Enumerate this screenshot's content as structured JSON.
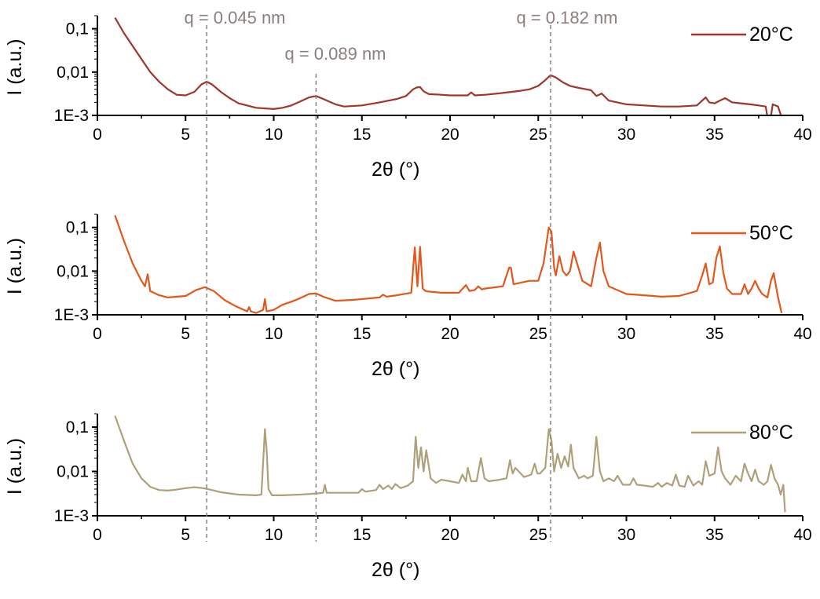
{
  "figure": {
    "annotations": [
      {
        "label": "q = 0.045 nm",
        "x": 6.2
      },
      {
        "label": "q = 0.089 nm",
        "x": 12.4
      },
      {
        "label": "q = 0.182 nm",
        "x": 25.7
      }
    ],
    "annotation_color": "#8c7f7d"
  },
  "chart_data": [
    {
      "type": "line",
      "legend_label": "20°C",
      "color": "#a0352a",
      "xlabel": "2θ (°)",
      "ylabel": "I (a.u.)",
      "xlim": [
        0,
        40
      ],
      "ylim": [
        0.001,
        0.2
      ],
      "y_scale": "log",
      "xticks": [
        0,
        5,
        10,
        15,
        20,
        25,
        30,
        35,
        40
      ],
      "yticks": [
        {
          "value": 0.001,
          "label": "1E-3"
        },
        {
          "value": 0.01,
          "label": "0,01"
        },
        {
          "value": 0.1,
          "label": "0,1"
        }
      ],
      "legend_position": "top-right",
      "series": [
        {
          "name": "20°C",
          "x": [
            1.0,
            1.5,
            2.0,
            2.5,
            3.0,
            3.5,
            4.0,
            4.5,
            5.0,
            5.5,
            5.9,
            6.2,
            6.5,
            7.0,
            7.5,
            8.0,
            9.0,
            10.0,
            10.5,
            11.0,
            11.5,
            12.0,
            12.4,
            12.8,
            13.5,
            14.0,
            15.0,
            16.0,
            17.0,
            17.5,
            17.9,
            18.1,
            18.3,
            18.5,
            18.8,
            19.5,
            20.0,
            21.0,
            21.2,
            21.4,
            22.0,
            23.0,
            24.0,
            24.5,
            25.0,
            25.4,
            25.7,
            26.0,
            26.4,
            26.8,
            27.2,
            27.6,
            28.0,
            28.3,
            28.6,
            29.0,
            30.0,
            31.0,
            32.0,
            33.0,
            34.0,
            34.3,
            34.5,
            34.7,
            35.0,
            35.3,
            35.6,
            36.0,
            36.5,
            37.0,
            37.5,
            37.9,
            38.1,
            38.3,
            38.6,
            38.8
          ],
          "y": [
            0.18,
            0.08,
            0.04,
            0.02,
            0.01,
            0.006,
            0.004,
            0.003,
            0.0029,
            0.0035,
            0.0052,
            0.006,
            0.0052,
            0.0035,
            0.0025,
            0.0019,
            0.0015,
            0.0014,
            0.0015,
            0.0017,
            0.0021,
            0.0026,
            0.0028,
            0.0024,
            0.0018,
            0.0016,
            0.0017,
            0.002,
            0.0024,
            0.0028,
            0.004,
            0.0044,
            0.0045,
            0.0036,
            0.0031,
            0.003,
            0.0029,
            0.0029,
            0.0034,
            0.0029,
            0.003,
            0.0033,
            0.0037,
            0.004,
            0.0048,
            0.0065,
            0.0085,
            0.0075,
            0.0058,
            0.0048,
            0.0044,
            0.0041,
            0.0038,
            0.0028,
            0.0032,
            0.0022,
            0.0018,
            0.0017,
            0.0016,
            0.0016,
            0.0017,
            0.0022,
            0.0026,
            0.002,
            0.0019,
            0.0022,
            0.0025,
            0.002,
            0.0019,
            0.0018,
            0.0017,
            0.0016,
            0.0005,
            0.0018,
            0.0016,
            0.0009
          ]
        }
      ]
    },
    {
      "type": "line",
      "legend_label": "50°C",
      "color": "#e2571c",
      "xlabel": "2θ (°)",
      "ylabel": "I (a.u.)",
      "xlim": [
        0,
        40
      ],
      "ylim": [
        0.001,
        0.2
      ],
      "y_scale": "log",
      "xticks": [
        0,
        5,
        10,
        15,
        20,
        25,
        30,
        35,
        40
      ],
      "yticks": [
        {
          "value": 0.001,
          "label": "1E-3"
        },
        {
          "value": 0.01,
          "label": "0,01"
        },
        {
          "value": 0.1,
          "label": "0,1"
        }
      ],
      "legend_position": "top-right",
      "series": [
        {
          "name": "50°C",
          "x": [
            1.0,
            1.5,
            2.0,
            2.5,
            2.7,
            2.85,
            3.0,
            3.5,
            4.0,
            5.0,
            5.6,
            6.1,
            6.6,
            7.2,
            7.8,
            8.5,
            8.6,
            8.7,
            9.0,
            9.4,
            9.5,
            9.6,
            10.0,
            10.5,
            11.0,
            11.5,
            12.0,
            12.4,
            12.8,
            13.5,
            14.5,
            16.0,
            16.2,
            16.4,
            17.0,
            17.8,
            18.0,
            18.15,
            18.3,
            18.45,
            18.6,
            18.8,
            19.5,
            20.5,
            20.9,
            21.1,
            21.4,
            21.6,
            21.8,
            22.0,
            23.0,
            23.35,
            23.45,
            23.6,
            24.5,
            25.0,
            25.3,
            25.6,
            25.75,
            25.9,
            26.0,
            26.2,
            26.4,
            26.6,
            26.8,
            27.0,
            27.5,
            28.0,
            28.3,
            28.5,
            28.7,
            29.0,
            30.0,
            31.0,
            32.0,
            33.0,
            34.0,
            34.3,
            34.5,
            34.7,
            34.9,
            35.1,
            35.3,
            35.5,
            35.7,
            36.0,
            36.5,
            36.7,
            36.9,
            37.1,
            37.3,
            37.5,
            37.7,
            38.0,
            38.2,
            38.35,
            38.6,
            38.8
          ],
          "y": [
            0.19,
            0.05,
            0.015,
            0.006,
            0.0045,
            0.0085,
            0.0035,
            0.0028,
            0.0025,
            0.0027,
            0.0037,
            0.0043,
            0.0035,
            0.0022,
            0.0016,
            0.0012,
            0.0015,
            0.0012,
            0.0011,
            0.0013,
            0.0023,
            0.0012,
            0.0013,
            0.0017,
            0.002,
            0.0024,
            0.003,
            0.0031,
            0.0026,
            0.0021,
            0.0022,
            0.0025,
            0.0029,
            0.0026,
            0.0028,
            0.0032,
            0.035,
            0.0045,
            0.036,
            0.004,
            0.0035,
            0.0034,
            0.0032,
            0.0032,
            0.0048,
            0.0035,
            0.0037,
            0.0045,
            0.0038,
            0.004,
            0.0045,
            0.012,
            0.012,
            0.005,
            0.006,
            0.006,
            0.015,
            0.1,
            0.08,
            0.012,
            0.008,
            0.022,
            0.01,
            0.008,
            0.01,
            0.028,
            0.006,
            0.0045,
            0.02,
            0.045,
            0.01,
            0.0045,
            0.003,
            0.0028,
            0.0026,
            0.0027,
            0.0035,
            0.008,
            0.015,
            0.005,
            0.0055,
            0.02,
            0.037,
            0.009,
            0.004,
            0.003,
            0.003,
            0.005,
            0.003,
            0.004,
            0.006,
            0.004,
            0.003,
            0.0025,
            0.006,
            0.009,
            0.0025,
            0.0011
          ]
        }
      ]
    },
    {
      "type": "line",
      "legend_label": "80°C",
      "color": "#b0a07a",
      "xlabel": "2θ (°)",
      "ylabel": "I (a.u.)",
      "xlim": [
        0,
        40
      ],
      "ylim": [
        0.001,
        0.2
      ],
      "y_scale": "log",
      "xticks": [
        0,
        5,
        10,
        15,
        20,
        25,
        30,
        35,
        40
      ],
      "yticks": [
        {
          "value": 0.001,
          "label": "1E-3"
        },
        {
          "value": 0.01,
          "label": "0,01"
        },
        {
          "value": 0.1,
          "label": "0,1"
        }
      ],
      "legend_position": "top-right",
      "series": [
        {
          "name": "80°C",
          "x": [
            1.0,
            1.5,
            2.0,
            2.5,
            3.0,
            3.5,
            4.0,
            4.5,
            5.0,
            5.5,
            6.0,
            6.5,
            7.0,
            8.0,
            9.0,
            9.3,
            9.5,
            9.6,
            9.7,
            9.9,
            10.5,
            11.5,
            12.5,
            12.8,
            12.9,
            13.0,
            13.5,
            14.8,
            15.0,
            15.2,
            15.8,
            16.0,
            16.2,
            16.5,
            16.7,
            16.9,
            17.2,
            17.6,
            17.9,
            18.05,
            18.2,
            18.35,
            18.5,
            18.65,
            18.9,
            19.2,
            19.5,
            20.0,
            20.5,
            20.7,
            20.9,
            21.0,
            21.2,
            21.5,
            21.75,
            21.95,
            22.2,
            22.8,
            23.2,
            23.4,
            23.55,
            23.7,
            24.2,
            24.6,
            24.8,
            24.95,
            25.1,
            25.4,
            25.6,
            25.75,
            25.9,
            26.1,
            26.3,
            26.5,
            26.7,
            26.85,
            27.0,
            27.3,
            27.6,
            27.8,
            28.1,
            28.3,
            28.5,
            28.7,
            29.0,
            29.3,
            29.5,
            29.8,
            30.2,
            30.4,
            30.6,
            31.0,
            31.5,
            31.8,
            32.0,
            32.3,
            32.6,
            32.8,
            33.0,
            33.3,
            33.5,
            33.8,
            34.1,
            34.3,
            34.5,
            34.7,
            35.0,
            35.2,
            35.4,
            35.6,
            35.9,
            36.2,
            36.5,
            36.7,
            36.9,
            37.1,
            37.3,
            37.5,
            37.8,
            38.0,
            38.2,
            38.4,
            38.6,
            38.75,
            38.9,
            39.0
          ],
          "y": [
            0.18,
            0.05,
            0.015,
            0.007,
            0.0045,
            0.0038,
            0.0037,
            0.0039,
            0.0042,
            0.0044,
            0.0042,
            0.0038,
            0.0034,
            0.003,
            0.0029,
            0.003,
            0.09,
            0.03,
            0.004,
            0.0029,
            0.0029,
            0.003,
            0.0032,
            0.0033,
            0.005,
            0.0033,
            0.0033,
            0.0033,
            0.004,
            0.0035,
            0.0038,
            0.005,
            0.004,
            0.0048,
            0.004,
            0.0052,
            0.0042,
            0.0048,
            0.006,
            0.06,
            0.012,
            0.035,
            0.01,
            0.03,
            0.007,
            0.0055,
            0.0065,
            0.006,
            0.0055,
            0.0085,
            0.006,
            0.012,
            0.006,
            0.006,
            0.02,
            0.007,
            0.006,
            0.0065,
            0.007,
            0.018,
            0.009,
            0.012,
            0.0075,
            0.0085,
            0.015,
            0.009,
            0.009,
            0.012,
            0.09,
            0.05,
            0.01,
            0.025,
            0.012,
            0.022,
            0.013,
            0.04,
            0.012,
            0.007,
            0.008,
            0.007,
            0.008,
            0.06,
            0.01,
            0.006,
            0.007,
            0.006,
            0.008,
            0.005,
            0.005,
            0.007,
            0.005,
            0.0048,
            0.0045,
            0.0055,
            0.0045,
            0.0055,
            0.0048,
            0.0085,
            0.0048,
            0.0045,
            0.008,
            0.0048,
            0.006,
            0.005,
            0.017,
            0.008,
            0.009,
            0.035,
            0.01,
            0.007,
            0.005,
            0.008,
            0.006,
            0.015,
            0.009,
            0.006,
            0.011,
            0.006,
            0.005,
            0.006,
            0.014,
            0.007,
            0.005,
            0.003,
            0.005,
            0.0012
          ]
        }
      ]
    }
  ]
}
